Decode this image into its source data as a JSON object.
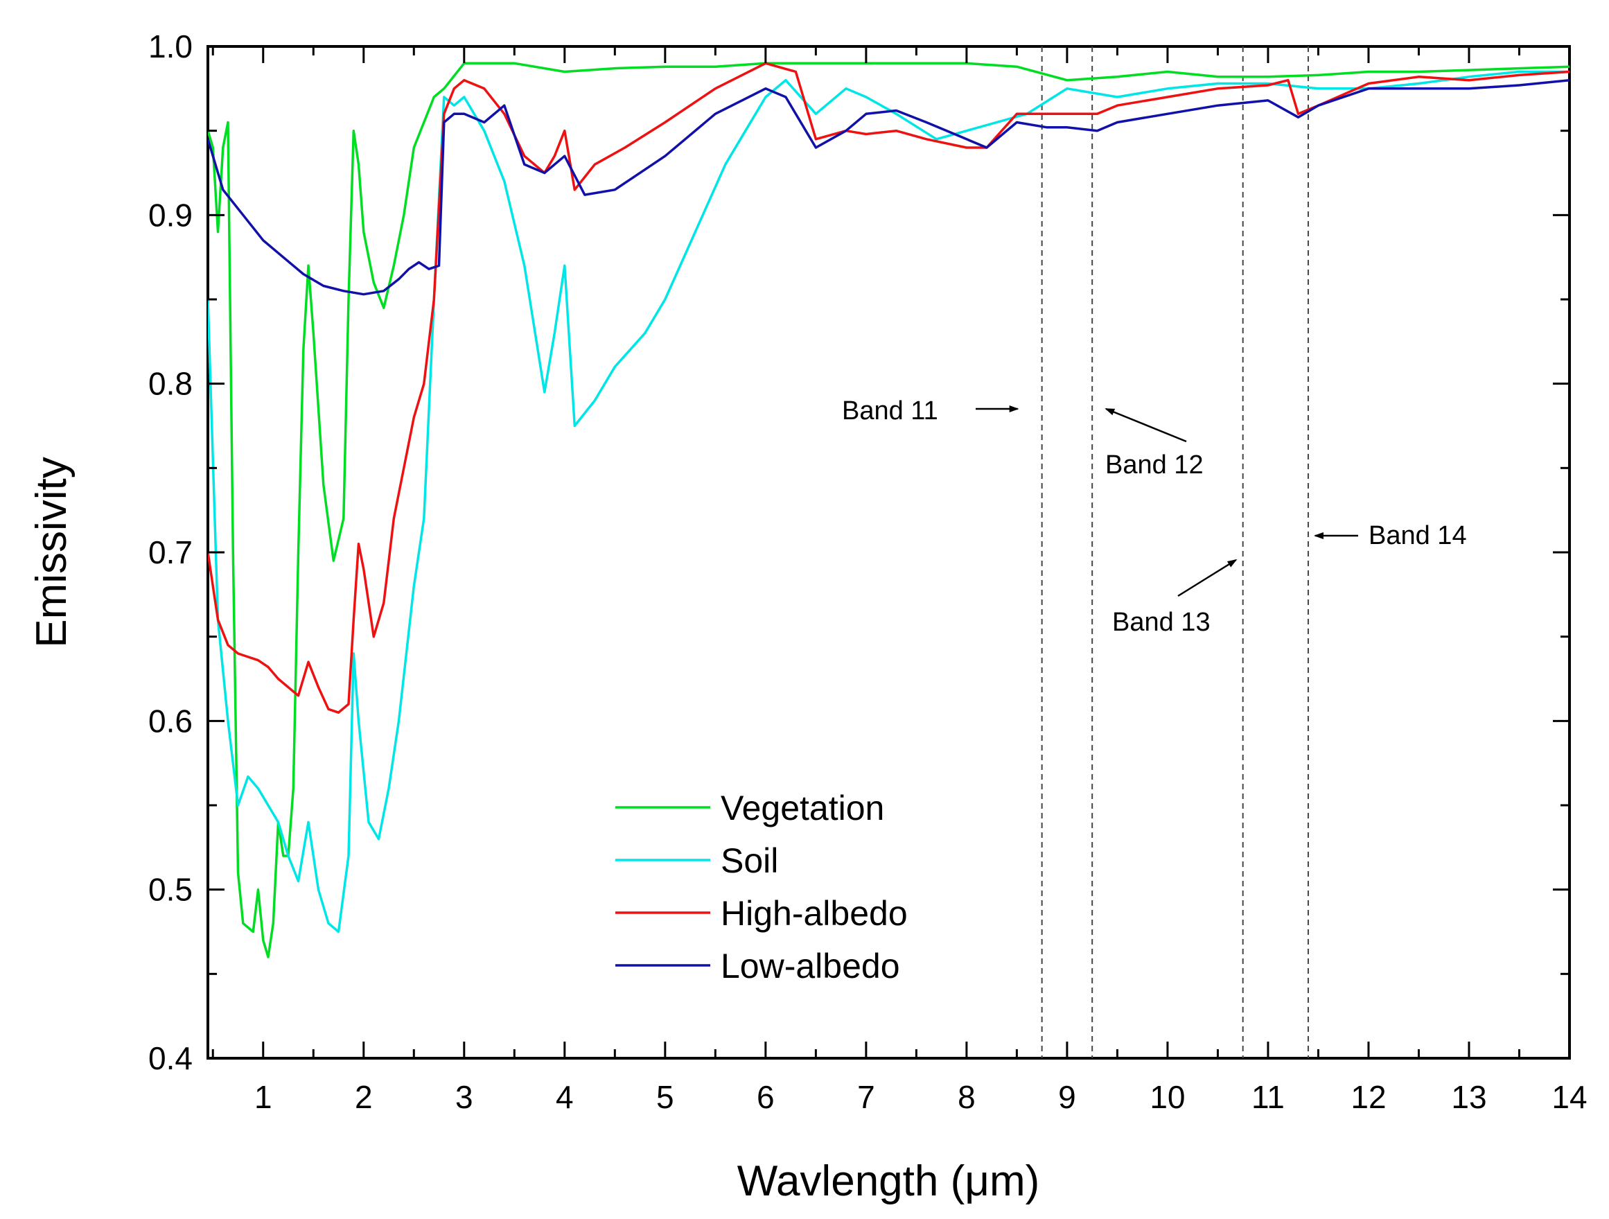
{
  "chart_data": {
    "type": "line",
    "title": "",
    "xlabel": "Wavlength (μm)",
    "ylabel": "Emissivity",
    "xlim": [
      0.45,
      14.0
    ],
    "ylim": [
      0.4,
      1.0
    ],
    "x_ticks": [
      1,
      2,
      3,
      4,
      5,
      6,
      7,
      8,
      9,
      10,
      11,
      12,
      13,
      14
    ],
    "x_tick_labels": [
      "1",
      "2",
      "3",
      "4",
      "5",
      "6",
      "7",
      "8",
      "9",
      "10",
      "11",
      "12",
      "13",
      "14"
    ],
    "y_ticks": [
      0.4,
      0.5,
      0.6,
      0.7,
      0.8,
      0.9,
      1.0
    ],
    "y_tick_labels": [
      "0.4",
      "0.5",
      "0.6",
      "0.7",
      "0.8",
      "0.9",
      "1.0"
    ],
    "grid": false,
    "legend_position": "lower-left",
    "series": [
      {
        "name": "Vegetation",
        "color": "#00dd22",
        "x": [
          0.45,
          0.5,
          0.55,
          0.6,
          0.65,
          0.7,
          0.75,
          0.8,
          0.9,
          0.95,
          1.0,
          1.05,
          1.1,
          1.15,
          1.2,
          1.25,
          1.3,
          1.35,
          1.4,
          1.45,
          1.5,
          1.6,
          1.7,
          1.8,
          1.85,
          1.9,
          1.95,
          2.0,
          2.1,
          2.2,
          2.3,
          2.4,
          2.5,
          2.6,
          2.7,
          2.8,
          3.0,
          3.2,
          3.5,
          4.0,
          4.5,
          5.0,
          5.5,
          6.0,
          6.5,
          7.0,
          7.5,
          8.0,
          8.5,
          9.0,
          9.5,
          10.0,
          10.5,
          11.0,
          11.5,
          12.0,
          12.5,
          13.0,
          13.5,
          14.0
        ],
        "values": [
          0.95,
          0.94,
          0.89,
          0.94,
          0.955,
          0.7,
          0.51,
          0.48,
          0.475,
          0.5,
          0.47,
          0.46,
          0.48,
          0.54,
          0.52,
          0.52,
          0.56,
          0.7,
          0.82,
          0.87,
          0.83,
          0.74,
          0.695,
          0.72,
          0.85,
          0.95,
          0.93,
          0.89,
          0.86,
          0.845,
          0.87,
          0.9,
          0.94,
          0.955,
          0.97,
          0.975,
          0.99,
          0.99,
          0.99,
          0.985,
          0.987,
          0.988,
          0.988,
          0.99,
          0.99,
          0.99,
          0.99,
          0.99,
          0.988,
          0.98,
          0.982,
          0.985,
          0.982,
          0.982,
          0.983,
          0.985,
          0.985,
          0.986,
          0.987,
          0.988
        ]
      },
      {
        "name": "Soil",
        "color": "#00e6e6",
        "x": [
          0.45,
          0.55,
          0.65,
          0.75,
          0.85,
          0.95,
          1.05,
          1.15,
          1.25,
          1.35,
          1.45,
          1.55,
          1.65,
          1.75,
          1.85,
          1.9,
          1.95,
          2.05,
          2.15,
          2.25,
          2.35,
          2.5,
          2.6,
          2.7,
          2.8,
          2.9,
          3.0,
          3.2,
          3.4,
          3.6,
          3.8,
          3.9,
          4.0,
          4.1,
          4.3,
          4.5,
          4.8,
          5.0,
          5.3,
          5.6,
          5.8,
          6.0,
          6.2,
          6.5,
          6.8,
          7.0,
          7.3,
          7.7,
          8.0,
          8.3,
          8.6,
          9.0,
          9.5,
          10.0,
          10.5,
          11.0,
          11.5,
          12.0,
          12.5,
          13.0,
          13.5,
          14.0
        ],
        "values": [
          0.85,
          0.66,
          0.6,
          0.55,
          0.567,
          0.56,
          0.55,
          0.54,
          0.52,
          0.505,
          0.54,
          0.5,
          0.48,
          0.475,
          0.52,
          0.64,
          0.6,
          0.54,
          0.53,
          0.56,
          0.6,
          0.68,
          0.72,
          0.85,
          0.97,
          0.965,
          0.97,
          0.95,
          0.92,
          0.87,
          0.795,
          0.83,
          0.87,
          0.775,
          0.79,
          0.81,
          0.83,
          0.85,
          0.89,
          0.93,
          0.95,
          0.97,
          0.98,
          0.96,
          0.975,
          0.97,
          0.96,
          0.945,
          0.95,
          0.955,
          0.96,
          0.975,
          0.97,
          0.975,
          0.978,
          0.978,
          0.975,
          0.975,
          0.978,
          0.982,
          0.985,
          0.985
        ]
      },
      {
        "name": "High-albedo",
        "color": "#ee1111",
        "x": [
          0.45,
          0.55,
          0.65,
          0.75,
          0.85,
          0.95,
          1.05,
          1.15,
          1.25,
          1.35,
          1.45,
          1.55,
          1.65,
          1.75,
          1.85,
          1.9,
          1.95,
          2.0,
          2.1,
          2.2,
          2.3,
          2.4,
          2.5,
          2.6,
          2.7,
          2.8,
          2.9,
          3.0,
          3.2,
          3.4,
          3.6,
          3.8,
          3.9,
          4.0,
          4.1,
          4.3,
          4.6,
          5.0,
          5.5,
          6.0,
          6.3,
          6.5,
          6.8,
          7.0,
          7.3,
          7.6,
          8.0,
          8.2,
          8.5,
          8.8,
          9.0,
          9.3,
          9.5,
          10.0,
          10.5,
          11.0,
          11.2,
          11.3,
          11.5,
          12.0,
          12.5,
          13.0,
          13.5,
          14.0
        ],
        "values": [
          0.7,
          0.66,
          0.645,
          0.64,
          0.638,
          0.636,
          0.632,
          0.625,
          0.62,
          0.615,
          0.635,
          0.62,
          0.607,
          0.605,
          0.61,
          0.66,
          0.705,
          0.69,
          0.65,
          0.67,
          0.72,
          0.75,
          0.78,
          0.8,
          0.85,
          0.96,
          0.975,
          0.98,
          0.975,
          0.96,
          0.935,
          0.925,
          0.935,
          0.95,
          0.915,
          0.93,
          0.94,
          0.955,
          0.975,
          0.99,
          0.985,
          0.945,
          0.95,
          0.948,
          0.95,
          0.945,
          0.94,
          0.94,
          0.96,
          0.96,
          0.96,
          0.96,
          0.965,
          0.97,
          0.975,
          0.977,
          0.98,
          0.96,
          0.965,
          0.978,
          0.982,
          0.98,
          0.983,
          0.985
        ]
      },
      {
        "name": "Low-albedo",
        "color": "#1111aa",
        "x": [
          0.45,
          0.6,
          0.8,
          1.0,
          1.2,
          1.4,
          1.6,
          1.8,
          2.0,
          2.2,
          2.35,
          2.45,
          2.55,
          2.65,
          2.75,
          2.8,
          2.9,
          3.0,
          3.2,
          3.4,
          3.6,
          3.8,
          4.0,
          4.2,
          4.5,
          5.0,
          5.5,
          6.0,
          6.2,
          6.5,
          6.8,
          7.0,
          7.3,
          7.6,
          8.0,
          8.2,
          8.5,
          8.8,
          9.0,
          9.3,
          9.5,
          10.0,
          10.5,
          11.0,
          11.3,
          11.5,
          12.0,
          12.5,
          13.0,
          13.5,
          14.0
        ],
        "values": [
          0.945,
          0.915,
          0.9,
          0.885,
          0.875,
          0.865,
          0.858,
          0.855,
          0.853,
          0.855,
          0.862,
          0.868,
          0.872,
          0.868,
          0.87,
          0.955,
          0.96,
          0.96,
          0.955,
          0.965,
          0.93,
          0.925,
          0.935,
          0.912,
          0.915,
          0.935,
          0.96,
          0.975,
          0.97,
          0.94,
          0.95,
          0.96,
          0.962,
          0.955,
          0.945,
          0.94,
          0.955,
          0.952,
          0.952,
          0.95,
          0.955,
          0.96,
          0.965,
          0.968,
          0.958,
          0.965,
          0.975,
          0.975,
          0.975,
          0.977,
          0.98
        ]
      }
    ],
    "bands": [
      {
        "name": "Band 11",
        "x": 8.75,
        "label": "Band 11",
        "arrow": "right"
      },
      {
        "name": "Band 12",
        "x": 9.25,
        "label": "Band 12",
        "arrow": "up-left"
      },
      {
        "name": "Band 13",
        "x": 10.75,
        "label": "Band 13",
        "arrow": "up-right"
      },
      {
        "name": "Band 14",
        "x": 11.4,
        "label": "Band 14",
        "arrow": "left"
      }
    ]
  }
}
